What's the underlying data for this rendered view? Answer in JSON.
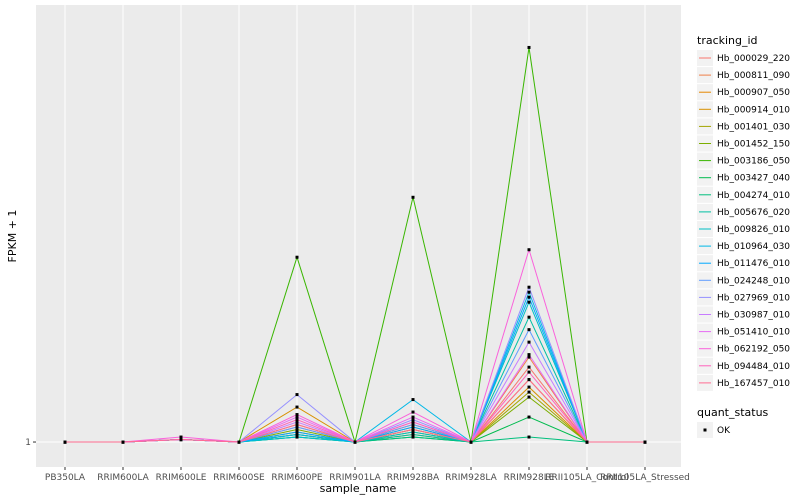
{
  "chart_data": {
    "type": "line",
    "title": "",
    "xlabel": "sample_name",
    "ylabel": "FPKM + 1",
    "y_tick_labels": [
      "1"
    ],
    "categories": [
      "PB350LA",
      "RRIM600LA",
      "RRIM600LE",
      "RRIM600SE",
      "RRIM600PE",
      "RRIM901LA",
      "RRIM928BA",
      "RRIM928LA",
      "RRIM928LE",
      "RRII105LA_Control",
      "RRII105LA_Stressed"
    ],
    "ylim": [
      0.9,
      2.75
    ],
    "legend_title": "tracking_id",
    "series": [
      {
        "name": "Hb_000029_220",
        "color": "#F8766D",
        "values": [
          1,
          1,
          1.01,
          1,
          1.06,
          1,
          1.05,
          1,
          1.3,
          1,
          1
        ]
      },
      {
        "name": "Hb_000811_090",
        "color": "#EF7F49",
        "values": [
          1,
          1,
          1.01,
          1,
          1.07,
          1,
          1.06,
          1,
          1.34,
          1,
          1
        ]
      },
      {
        "name": "Hb_000907_050",
        "color": "#E58700",
        "values": [
          1,
          1,
          1.01,
          1,
          1.04,
          1,
          1.03,
          1,
          1.25,
          1,
          1
        ]
      },
      {
        "name": "Hb_000914_010",
        "color": "#D89000",
        "values": [
          1,
          1,
          1.01,
          1,
          1.14,
          1,
          1.07,
          1,
          1.22,
          1,
          1
        ]
      },
      {
        "name": "Hb_001401_030",
        "color": "#A3A500",
        "values": [
          1,
          1,
          1.01,
          1,
          1.03,
          1,
          1.04,
          1,
          1.2,
          1,
          1
        ]
      },
      {
        "name": "Hb_001452_150",
        "color": "#7CAE00",
        "values": [
          1,
          1,
          1.01,
          1,
          1.05,
          1,
          1.05,
          1,
          1.18,
          1,
          1
        ]
      },
      {
        "name": "Hb_003186_050",
        "color": "#39B600",
        "values": [
          1,
          1,
          1.01,
          1,
          1.74,
          1,
          1.98,
          1,
          2.58,
          1,
          1
        ]
      },
      {
        "name": "Hb_003427_040",
        "color": "#00BB4E",
        "values": [
          1,
          1,
          1.01,
          1,
          1.03,
          1,
          1.02,
          1,
          1.1,
          1,
          1
        ]
      },
      {
        "name": "Hb_004274_010",
        "color": "#00BF7D",
        "values": [
          1,
          1,
          1.01,
          1,
          1.02,
          1,
          1.02,
          1,
          1.02,
          1,
          1
        ]
      },
      {
        "name": "Hb_005676_020",
        "color": "#00C1A3",
        "values": [
          1,
          1,
          1.01,
          1,
          1.02,
          1,
          1.03,
          1,
          1.5,
          1,
          1
        ]
      },
      {
        "name": "Hb_009826_010",
        "color": "#00BFC4",
        "values": [
          1,
          1,
          1.01,
          1,
          1.02,
          1,
          1.04,
          1,
          1.56,
          1,
          1
        ]
      },
      {
        "name": "Hb_010964_030",
        "color": "#00B8E7",
        "values": [
          1,
          1,
          1.01,
          1,
          1.03,
          1,
          1.17,
          1,
          1.6,
          1,
          1
        ]
      },
      {
        "name": "Hb_011476_010",
        "color": "#00A9FF",
        "values": [
          1,
          1,
          1.01,
          1,
          1.04,
          1,
          1.06,
          1,
          1.58,
          1,
          1
        ]
      },
      {
        "name": "Hb_024248_010",
        "color": "#619CFF",
        "values": [
          1,
          1,
          1.01,
          1,
          1.06,
          1,
          1.07,
          1,
          1.45,
          1,
          1
        ]
      },
      {
        "name": "Hb_027969_010",
        "color": "#9590FF",
        "values": [
          1,
          1,
          1.01,
          1,
          1.19,
          1,
          1.09,
          1,
          1.62,
          1,
          1
        ]
      },
      {
        "name": "Hb_030987_010",
        "color": "#C77CFF",
        "values": [
          1,
          1,
          1.01,
          1,
          1.08,
          1,
          1.08,
          1,
          1.4,
          1,
          1
        ]
      },
      {
        "name": "Hb_051410_010",
        "color": "#E76BF3",
        "values": [
          1,
          1,
          1.01,
          1,
          1.1,
          1,
          1.1,
          1,
          1.35,
          1,
          1
        ]
      },
      {
        "name": "Hb_062192_050",
        "color": "#FA62DB",
        "values": [
          1,
          1,
          1.02,
          1,
          1.11,
          1,
          1.12,
          1,
          1.77,
          1,
          1
        ]
      },
      {
        "name": "Hb_094484_010",
        "color": "#FF62BC",
        "values": [
          1,
          1,
          1.01,
          1,
          1.09,
          1,
          1.08,
          1,
          1.28,
          1,
          1
        ]
      },
      {
        "name": "Hb_167457_010",
        "color": "#FF6C91",
        "values": [
          1,
          1,
          1.01,
          1,
          1.07,
          1,
          1.05,
          1,
          1.25,
          1,
          1
        ]
      }
    ],
    "shape_legend": {
      "title": "quant_status",
      "entries": [
        "OK"
      ]
    }
  }
}
